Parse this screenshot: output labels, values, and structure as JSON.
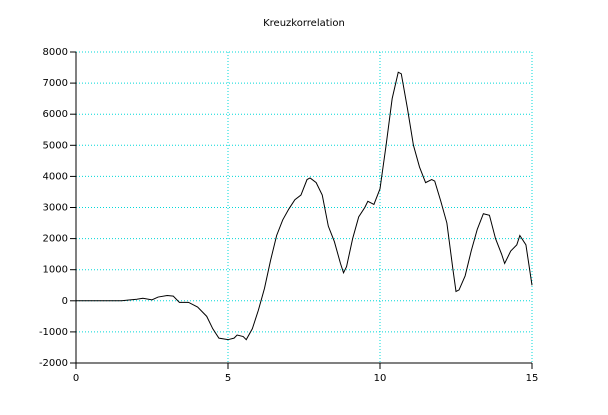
{
  "chart_data": {
    "type": "line",
    "title": "Kreuzkorrelation",
    "x": [
      0,
      1.5,
      1.7,
      2,
      2.2,
      2.5,
      2.7,
      3,
      3.2,
      3.4,
      3.7,
      4,
      4.3,
      4.5,
      4.7,
      5,
      5.2,
      5.3,
      5.5,
      5.6,
      5.8,
      6,
      6.2,
      6.4,
      6.6,
      6.8,
      7,
      7.2,
      7.4,
      7.6,
      7.7,
      7.9,
      8.1,
      8.3,
      8.5,
      8.7,
      8.8,
      8.9,
      9.1,
      9.3,
      9.5,
      9.6,
      9.8,
      10,
      10.2,
      10.4,
      10.6,
      10.7,
      10.9,
      11.1,
      11.3,
      11.5,
      11.7,
      11.8,
      12,
      12.2,
      12.4,
      12.5,
      12.6,
      12.8,
      13,
      13.2,
      13.4,
      13.6,
      13.8,
      14,
      14.1,
      14.3,
      14.5,
      14.6,
      14.8,
      15
    ],
    "series": [
      {
        "color": "#000000",
        "values": [
          0,
          0,
          20,
          50,
          80,
          30,
          120,
          170,
          150,
          -50,
          -50,
          -200,
          -500,
          -900,
          -1200,
          -1250,
          -1200,
          -1100,
          -1150,
          -1250,
          -900,
          -300,
          400,
          1300,
          2100,
          2600,
          2950,
          3250,
          3400,
          3900,
          3950,
          3800,
          3400,
          2400,
          1900,
          1200,
          900,
          1100,
          2000,
          2700,
          3000,
          3200,
          3100,
          3600,
          5000,
          6500,
          7350,
          7300,
          6200,
          5000,
          4300,
          3800,
          3900,
          3850,
          3200,
          2500,
          1000,
          300,
          350,
          800,
          1600,
          2300,
          2800,
          2750,
          2000,
          1500,
          1200,
          1600,
          1800,
          2100,
          1800,
          500
        ]
      }
    ],
    "xlim": [
      0,
      15
    ],
    "xticks": [
      0,
      5,
      10,
      15
    ],
    "ylim": [
      -2000,
      8000
    ],
    "yticks": [
      -2000,
      -1000,
      0,
      1000,
      2000,
      3000,
      4000,
      5000,
      6000,
      7000,
      8000
    ],
    "grid": true
  }
}
